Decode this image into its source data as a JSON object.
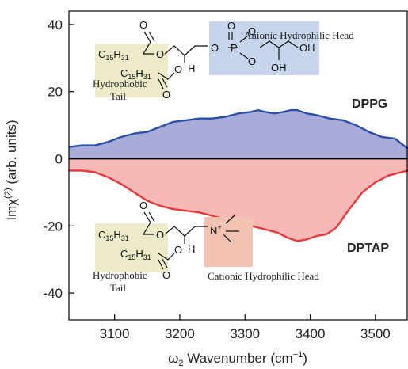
{
  "chart_data": {
    "type": "area",
    "xlabel": "ω2 Wavenumber (cm−1)",
    "ylabel": "Imχ(2) (arb. units)",
    "xlim": [
      3030,
      3550
    ],
    "ylim": [
      -48,
      44
    ],
    "xticks": [
      3100,
      3200,
      3300,
      3400,
      3500
    ],
    "yticks": [
      -40,
      -20,
      0,
      20,
      40
    ],
    "grid": false,
    "legend": "none",
    "series": [
      {
        "name": "DPPG",
        "color": "#2a4fa8",
        "fill": "#a9abd8",
        "x": [
          3030,
          3050,
          3070,
          3090,
          3110,
          3130,
          3150,
          3170,
          3190,
          3210,
          3230,
          3250,
          3270,
          3290,
          3310,
          3320,
          3330,
          3345,
          3360,
          3370,
          3380,
          3395,
          3410,
          3430,
          3450,
          3470,
          3490,
          3510,
          3530,
          3550
        ],
        "y": [
          3.5,
          4,
          4,
          5,
          6.5,
          7.5,
          8,
          9.5,
          11,
          11.5,
          12,
          12,
          12.5,
          13.5,
          14,
          14.5,
          14,
          13.5,
          14,
          14.5,
          14.5,
          13.5,
          13,
          12,
          11.5,
          10,
          8,
          6.5,
          6,
          3
        ]
      },
      {
        "name": "DPTAP",
        "color": "#e8383a",
        "fill": "#f7b8b8",
        "x": [
          3030,
          3050,
          3070,
          3090,
          3110,
          3130,
          3150,
          3170,
          3190,
          3210,
          3230,
          3250,
          3270,
          3290,
          3310,
          3330,
          3350,
          3365,
          3380,
          3395,
          3410,
          3425,
          3440,
          3460,
          3480,
          3500,
          3520,
          3540,
          3550
        ],
        "y": [
          -3.5,
          -3.5,
          -4,
          -5.5,
          -7.5,
          -10,
          -12.5,
          -14,
          -15,
          -15.5,
          -16,
          -17,
          -18,
          -19,
          -20,
          -21,
          -22,
          -23.5,
          -24.5,
          -24,
          -23,
          -22.5,
          -20.5,
          -15,
          -10,
          -7,
          -5,
          -4,
          -3.5
        ]
      }
    ],
    "labels": {
      "dppg": "DPPG",
      "dptap": "DPTAP"
    },
    "annotations": {
      "dppg_head": "Anionic Hydrophilic Head",
      "dppg_tail": "Hydrophobic",
      "dppg_tail2": "Tail",
      "dptap_head": "Cationic Hydrophilic Head",
      "dptap_tail": "Hydrophobic",
      "dptap_tail2": "Tail",
      "chain1": "C15H31",
      "chain_c": "C",
      "chain_sub": "15",
      "chain_h": "H",
      "chain_sub2": "31",
      "O": "O",
      "H": "H",
      "P": "P",
      "OH": "OH",
      "N": "N",
      "plus": "+"
    },
    "colors": {
      "tail_box": "#eceac8",
      "anionic_box": "#c6d4ec",
      "cationic_box": "#f2c3b3"
    }
  }
}
